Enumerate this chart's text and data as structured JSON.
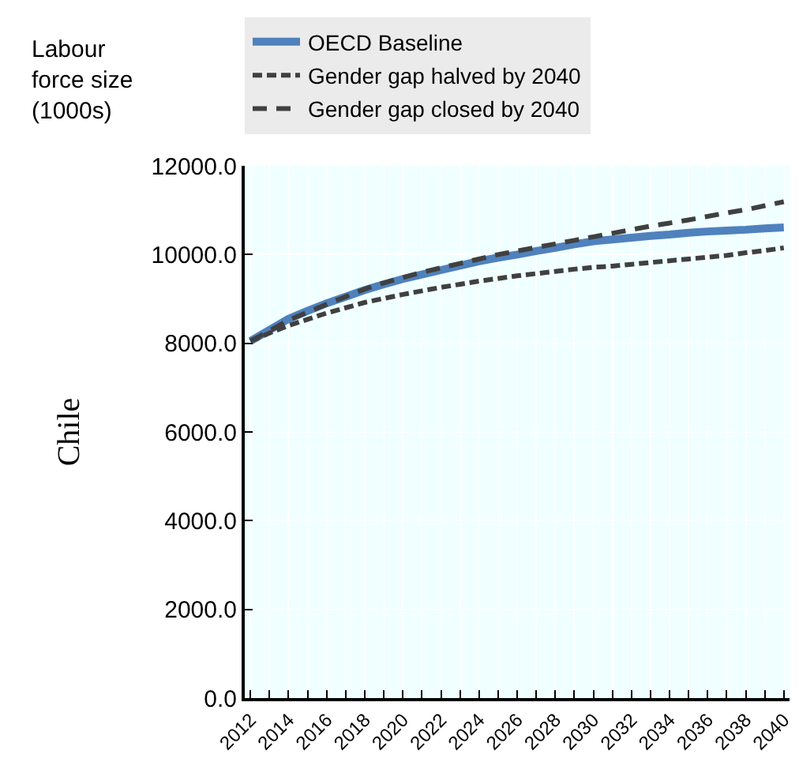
{
  "chart_data": {
    "type": "line",
    "ylabel": "Chile",
    "annotations": [
      "Labour force size (1000s)"
    ],
    "categories": [
      "2012",
      null,
      "2014",
      null,
      "2016",
      null,
      "2018",
      null,
      "2020",
      null,
      "2022",
      null,
      "2024",
      null,
      "2026",
      null,
      "2028",
      null,
      "2030",
      null,
      "2032",
      null,
      "2034",
      null,
      "2036",
      null,
      "2038",
      null,
      "2040"
    ],
    "series": [
      {
        "name": "OECD Baseline",
        "color": "#4f81bd",
        "line_style": "solid",
        "values": [
          8050,
          8300,
          8550,
          8730,
          8900,
          9050,
          9200,
          9330,
          9450,
          9550,
          9650,
          9750,
          9850,
          9930,
          10000,
          10080,
          10150,
          10230,
          10300,
          10340,
          10380,
          10420,
          10450,
          10490,
          10520,
          10540,
          10560,
          10590,
          10610
        ]
      },
      {
        "name": "Gender gap halved by 2040",
        "color": "#404040",
        "line_style": "dotted",
        "values": [
          8050,
          8230,
          8400,
          8540,
          8680,
          8800,
          8920,
          9010,
          9100,
          9180,
          9260,
          9330,
          9400,
          9460,
          9520,
          9570,
          9620,
          9670,
          9710,
          9740,
          9780,
          9820,
          9860,
          9900,
          9940,
          9980,
          10040,
          10090,
          10150
        ]
      },
      {
        "name": "Gender gap closed by 2040",
        "color": "#404040",
        "line_style": "dashed",
        "values": [
          8050,
          8280,
          8520,
          8700,
          8880,
          9050,
          9220,
          9360,
          9480,
          9600,
          9700,
          9800,
          9900,
          10000,
          10080,
          10160,
          10240,
          10320,
          10400,
          10480,
          10560,
          10640,
          10710,
          10780,
          10860,
          10940,
          11010,
          11100,
          11190
        ]
      }
    ],
    "ylim": [
      0,
      12000
    ],
    "yticks": [
      {
        "value": 0,
        "label": "0.0"
      },
      {
        "value": 2000,
        "label": "2000.0"
      },
      {
        "value": 4000,
        "label": "4000.0"
      },
      {
        "value": 6000,
        "label": "6000.0"
      },
      {
        "value": 8000,
        "label": "8000.0"
      },
      {
        "value": 10000,
        "label": "10000.0"
      },
      {
        "value": 12000,
        "label": "12000.0"
      }
    ],
    "grid": true,
    "legend": "top",
    "marker": "none"
  }
}
